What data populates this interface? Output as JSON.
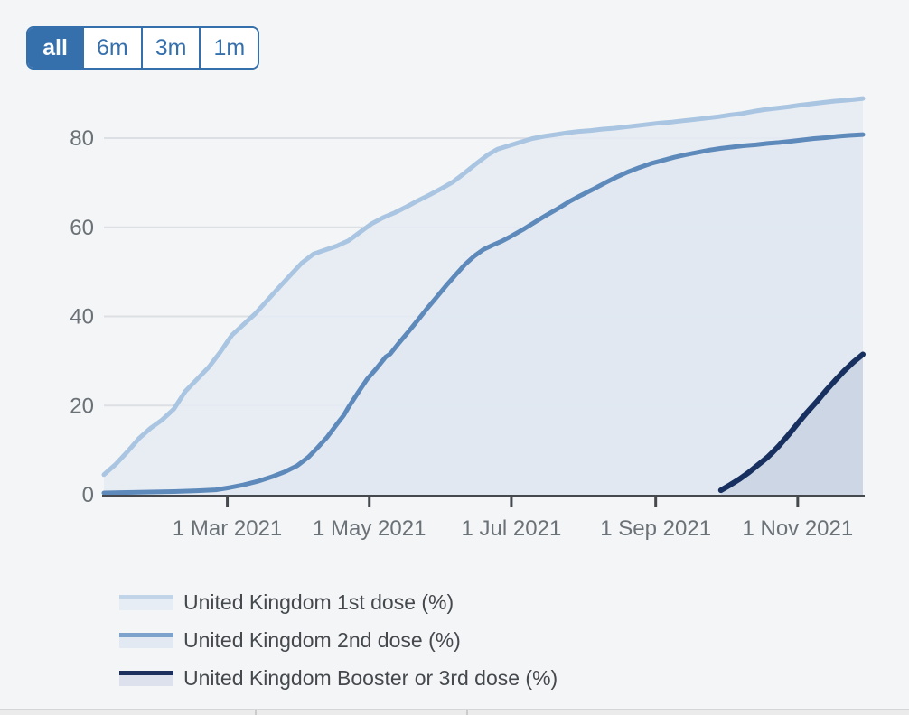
{
  "time_range_selector": {
    "options": [
      {
        "label": "all",
        "selected": true
      },
      {
        "label": "6m",
        "selected": false
      },
      {
        "label": "3m",
        "selected": false
      },
      {
        "label": "1m",
        "selected": false
      }
    ]
  },
  "colors": {
    "accent_blue": "#3570ad",
    "page_background": "#f4f5f6",
    "gridline": "#dcdfe3",
    "axis_line": "#45494d",
    "axis_label": "#6b7277",
    "legend_text": "#45494d"
  },
  "chart_data": {
    "type": "area",
    "x_range": [
      "2021-01-07",
      "2021-11-29"
    ],
    "y_ticks": [
      0,
      20,
      40,
      60,
      80
    ],
    "ylim": [
      0,
      90
    ],
    "grid": true,
    "legend_position": "bottom-left",
    "x_ticks": [
      {
        "date": "2021-03-01",
        "label": "1 Mar 2021"
      },
      {
        "date": "2021-05-01",
        "label": "1 May 2021"
      },
      {
        "date": "2021-07-01",
        "label": "1 Jul 2021"
      },
      {
        "date": "2021-09-01",
        "label": "1 Sep 2021"
      },
      {
        "date": "2021-11-01",
        "label": "1 Nov 2021"
      }
    ],
    "series": [
      {
        "name": "United Kingdom 1st dose (%)",
        "line_color": "#a9c5e1",
        "fill_color": "#e6ecf4",
        "legend_line_color": "#c2d4e8",
        "legend_fill_color": "#e7edf5",
        "line_width": 5,
        "points": [
          [
            "2021-01-07",
            4.5
          ],
          [
            "2021-01-12",
            6.8
          ],
          [
            "2021-01-17",
            9.6
          ],
          [
            "2021-01-22",
            12.6
          ],
          [
            "2021-01-27",
            14.9
          ],
          [
            "2021-02-01",
            16.8
          ],
          [
            "2021-02-06",
            19.2
          ],
          [
            "2021-02-11",
            23.2
          ],
          [
            "2021-02-16",
            25.9
          ],
          [
            "2021-02-21",
            28.6
          ],
          [
            "2021-02-26",
            32.0
          ],
          [
            "2021-03-03",
            35.8
          ],
          [
            "2021-03-08",
            38.2
          ],
          [
            "2021-03-13",
            40.6
          ],
          [
            "2021-03-18",
            43.5
          ],
          [
            "2021-03-23",
            46.4
          ],
          [
            "2021-03-28",
            49.2
          ],
          [
            "2021-04-02",
            52.0
          ],
          [
            "2021-04-07",
            54.0
          ],
          [
            "2021-04-12",
            54.9
          ],
          [
            "2021-04-17",
            55.8
          ],
          [
            "2021-04-22",
            57.0
          ],
          [
            "2021-04-27",
            58.9
          ],
          [
            "2021-05-02",
            60.8
          ],
          [
            "2021-05-07",
            62.2
          ],
          [
            "2021-05-12",
            63.3
          ],
          [
            "2021-05-17",
            64.6
          ],
          [
            "2021-05-22",
            66.0
          ],
          [
            "2021-05-27",
            67.3
          ],
          [
            "2021-06-01",
            68.7
          ],
          [
            "2021-06-06",
            70.2
          ],
          [
            "2021-06-11",
            72.2
          ],
          [
            "2021-06-16",
            74.3
          ],
          [
            "2021-06-21",
            76.3
          ],
          [
            "2021-06-25",
            77.5
          ],
          [
            "2021-06-30",
            78.3
          ],
          [
            "2021-07-05",
            79.1
          ],
          [
            "2021-07-10",
            79.9
          ],
          [
            "2021-07-15",
            80.4
          ],
          [
            "2021-07-20",
            80.8
          ],
          [
            "2021-07-25",
            81.2
          ],
          [
            "2021-07-30",
            81.5
          ],
          [
            "2021-08-04",
            81.7
          ],
          [
            "2021-08-09",
            82.0
          ],
          [
            "2021-08-14",
            82.2
          ],
          [
            "2021-08-19",
            82.5
          ],
          [
            "2021-08-24",
            82.8
          ],
          [
            "2021-08-29",
            83.1
          ],
          [
            "2021-09-03",
            83.4
          ],
          [
            "2021-09-08",
            83.6
          ],
          [
            "2021-09-13",
            83.9
          ],
          [
            "2021-09-18",
            84.2
          ],
          [
            "2021-09-23",
            84.5
          ],
          [
            "2021-09-28",
            84.8
          ],
          [
            "2021-10-03",
            85.2
          ],
          [
            "2021-10-08",
            85.5
          ],
          [
            "2021-10-13",
            86.0
          ],
          [
            "2021-10-18",
            86.4
          ],
          [
            "2021-10-23",
            86.7
          ],
          [
            "2021-10-28",
            87.0
          ],
          [
            "2021-11-02",
            87.4
          ],
          [
            "2021-11-07",
            87.7
          ],
          [
            "2021-11-12",
            88.0
          ],
          [
            "2021-11-17",
            88.3
          ],
          [
            "2021-11-22",
            88.5
          ],
          [
            "2021-11-26",
            88.7
          ],
          [
            "2021-11-29",
            88.9
          ]
        ]
      },
      {
        "name": "United Kingdom 2nd dose (%)",
        "line_color": "#5d89bb",
        "fill_color": "#dfe7f0",
        "legend_line_color": "#7da2cc",
        "legend_fill_color": "#e2e9f2",
        "line_width": 5,
        "points": [
          [
            "2021-01-07",
            0.4
          ],
          [
            "2021-01-17",
            0.5
          ],
          [
            "2021-01-27",
            0.6
          ],
          [
            "2021-02-06",
            0.7
          ],
          [
            "2021-02-16",
            0.9
          ],
          [
            "2021-02-24",
            1.1
          ],
          [
            "2021-03-02",
            1.6
          ],
          [
            "2021-03-08",
            2.2
          ],
          [
            "2021-03-14",
            3.0
          ],
          [
            "2021-03-20",
            4.0
          ],
          [
            "2021-03-26",
            5.2
          ],
          [
            "2021-03-31",
            6.5
          ],
          [
            "2021-04-05",
            8.5
          ],
          [
            "2021-04-09",
            10.7
          ],
          [
            "2021-04-13",
            13.0
          ],
          [
            "2021-04-17",
            15.8
          ],
          [
            "2021-04-20",
            17.8
          ],
          [
            "2021-04-22",
            19.6
          ],
          [
            "2021-04-26",
            22.8
          ],
          [
            "2021-04-30",
            25.9
          ],
          [
            "2021-05-04",
            28.3
          ],
          [
            "2021-05-08",
            30.9
          ],
          [
            "2021-05-10",
            31.6
          ],
          [
            "2021-05-14",
            34.2
          ],
          [
            "2021-05-18",
            36.7
          ],
          [
            "2021-05-22",
            39.3
          ],
          [
            "2021-05-26",
            41.9
          ],
          [
            "2021-05-30",
            44.4
          ],
          [
            "2021-06-03",
            46.9
          ],
          [
            "2021-06-07",
            49.3
          ],
          [
            "2021-06-11",
            51.6
          ],
          [
            "2021-06-15",
            53.5
          ],
          [
            "2021-06-19",
            55.0
          ],
          [
            "2021-06-23",
            56.0
          ],
          [
            "2021-06-27",
            56.9
          ],
          [
            "2021-07-01",
            58.0
          ],
          [
            "2021-07-06",
            59.5
          ],
          [
            "2021-07-11",
            61.1
          ],
          [
            "2021-07-16",
            62.7
          ],
          [
            "2021-07-21",
            64.2
          ],
          [
            "2021-07-26",
            65.8
          ],
          [
            "2021-07-31",
            67.2
          ],
          [
            "2021-08-05",
            68.5
          ],
          [
            "2021-08-10",
            69.9
          ],
          [
            "2021-08-15",
            71.2
          ],
          [
            "2021-08-20",
            72.4
          ],
          [
            "2021-08-25",
            73.4
          ],
          [
            "2021-08-30",
            74.3
          ],
          [
            "2021-09-04",
            75.0
          ],
          [
            "2021-09-09",
            75.7
          ],
          [
            "2021-09-14",
            76.3
          ],
          [
            "2021-09-19",
            76.8
          ],
          [
            "2021-09-24",
            77.3
          ],
          [
            "2021-09-29",
            77.7
          ],
          [
            "2021-10-04",
            78.0
          ],
          [
            "2021-10-09",
            78.3
          ],
          [
            "2021-10-14",
            78.5
          ],
          [
            "2021-10-19",
            78.8
          ],
          [
            "2021-10-24",
            79.0
          ],
          [
            "2021-10-29",
            79.3
          ],
          [
            "2021-11-03",
            79.6
          ],
          [
            "2021-11-08",
            79.9
          ],
          [
            "2021-11-13",
            80.1
          ],
          [
            "2021-11-18",
            80.4
          ],
          [
            "2021-11-23",
            80.6
          ],
          [
            "2021-11-29",
            80.8
          ]
        ]
      },
      {
        "name": "United Kingdom Booster or 3rd dose (%)",
        "line_color": "#17305f",
        "fill_color": "#c8d3e2",
        "legend_line_color": "#1c2f5d",
        "legend_fill_color": "#dde1ed",
        "line_width": 6,
        "points": [
          [
            "2021-09-29",
            1.0
          ],
          [
            "2021-10-03",
            2.2
          ],
          [
            "2021-10-07",
            3.5
          ],
          [
            "2021-10-11",
            5.0
          ],
          [
            "2021-10-15",
            6.7
          ],
          [
            "2021-10-19",
            8.4
          ],
          [
            "2021-10-21",
            9.4
          ],
          [
            "2021-10-24",
            11.0
          ],
          [
            "2021-10-28",
            13.4
          ],
          [
            "2021-11-01",
            16.0
          ],
          [
            "2021-11-05",
            18.5
          ],
          [
            "2021-11-09",
            20.8
          ],
          [
            "2021-11-13",
            23.3
          ],
          [
            "2021-11-17",
            25.6
          ],
          [
            "2021-11-21",
            27.8
          ],
          [
            "2021-11-25",
            29.8
          ],
          [
            "2021-11-29",
            31.5
          ]
        ]
      }
    ]
  }
}
